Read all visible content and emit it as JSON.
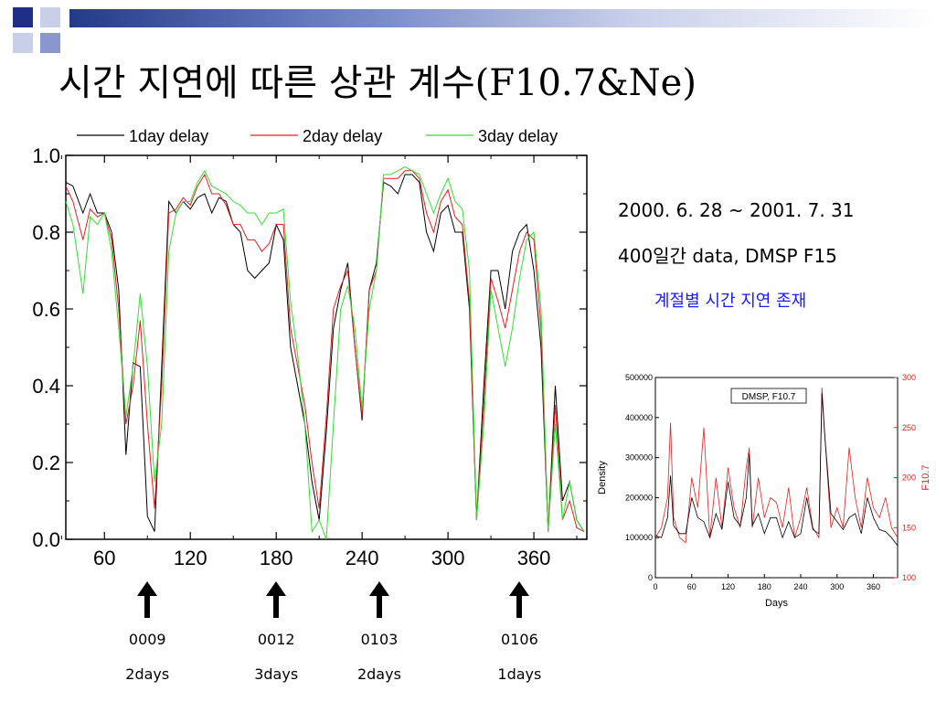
{
  "slide": {
    "title": "시간 지연에 따른 상관 계수(F10.7&Ne)"
  },
  "info": {
    "period": "2000. 6. 28 ~ 2001. 7. 31",
    "dataset": "400일간 data, DMSP F15",
    "note": "계절별 시간 지연 존재"
  },
  "colors": {
    "series1": "#000000",
    "series2": "#e02020",
    "series3": "#33dd33",
    "accent_blue": "#1a1aff",
    "deco_blue": "#223a8a"
  },
  "markers": [
    {
      "code": "0009",
      "delay": "2days",
      "x": 90
    },
    {
      "code": "0012",
      "delay": "3days",
      "x": 180
    },
    {
      "code": "0103",
      "delay": "2days",
      "x": 252
    },
    {
      "code": "0106",
      "delay": "1days",
      "x": 350
    }
  ],
  "chart_data": [
    {
      "type": "line",
      "title": "",
      "xlabel": "",
      "ylabel": "",
      "xlim": [
        33,
        397
      ],
      "ylim": [
        0.0,
        1.0
      ],
      "xticks": [
        "60",
        "120",
        "180",
        "240",
        "300",
        "360"
      ],
      "yticks": [
        "0.0",
        "0.2",
        "0.4",
        "0.6",
        "0.8",
        "1.0"
      ],
      "legend": "top, horizontal",
      "series": [
        {
          "name": "1day delay",
          "x": [
            33,
            38,
            45,
            50,
            55,
            60,
            65,
            70,
            75,
            80,
            85,
            90,
            95,
            100,
            105,
            110,
            115,
            120,
            125,
            130,
            135,
            140,
            145,
            150,
            155,
            160,
            165,
            170,
            175,
            180,
            185,
            190,
            195,
            200,
            205,
            210,
            215,
            220,
            225,
            230,
            235,
            240,
            245,
            250,
            255,
            260,
            265,
            270,
            275,
            280,
            285,
            290,
            295,
            300,
            305,
            310,
            315,
            320,
            325,
            330,
            335,
            340,
            345,
            350,
            355,
            360,
            365,
            370,
            375,
            380,
            385,
            390,
            395
          ],
          "y": [
            0.93,
            0.92,
            0.85,
            0.9,
            0.85,
            0.85,
            0.8,
            0.65,
            0.22,
            0.46,
            0.45,
            0.06,
            0.02,
            0.45,
            0.88,
            0.85,
            0.88,
            0.86,
            0.89,
            0.9,
            0.85,
            0.89,
            0.88,
            0.82,
            0.8,
            0.7,
            0.68,
            0.7,
            0.72,
            0.82,
            0.78,
            0.5,
            0.4,
            0.3,
            0.15,
            0.05,
            0.28,
            0.55,
            0.65,
            0.72,
            0.5,
            0.31,
            0.65,
            0.72,
            0.93,
            0.92,
            0.9,
            0.95,
            0.95,
            0.93,
            0.8,
            0.75,
            0.85,
            0.87,
            0.8,
            0.8,
            0.6,
            0.05,
            0.4,
            0.7,
            0.7,
            0.6,
            0.75,
            0.8,
            0.82,
            0.7,
            0.5,
            0.02,
            0.4,
            0.1,
            0.15,
            0.05,
            0.02
          ]
        },
        {
          "name": "2day delay",
          "x": [
            33,
            38,
            45,
            50,
            55,
            60,
            65,
            70,
            75,
            80,
            85,
            90,
            95,
            100,
            105,
            110,
            115,
            120,
            125,
            130,
            135,
            140,
            145,
            150,
            155,
            160,
            165,
            170,
            175,
            180,
            185,
            190,
            195,
            200,
            205,
            210,
            215,
            220,
            225,
            230,
            235,
            240,
            245,
            250,
            255,
            260,
            265,
            270,
            275,
            280,
            285,
            290,
            295,
            300,
            305,
            310,
            315,
            320,
            325,
            330,
            335,
            340,
            345,
            350,
            355,
            360,
            365,
            370,
            375,
            380,
            385,
            390,
            395
          ],
          "y": [
            0.92,
            0.88,
            0.78,
            0.86,
            0.84,
            0.85,
            0.78,
            0.6,
            0.3,
            0.4,
            0.57,
            0.3,
            0.08,
            0.4,
            0.85,
            0.86,
            0.89,
            0.87,
            0.92,
            0.95,
            0.9,
            0.9,
            0.87,
            0.82,
            0.82,
            0.78,
            0.78,
            0.75,
            0.77,
            0.82,
            0.82,
            0.55,
            0.45,
            0.35,
            0.2,
            0.08,
            0.32,
            0.6,
            0.66,
            0.7,
            0.5,
            0.32,
            0.65,
            0.7,
            0.94,
            0.94,
            0.94,
            0.96,
            0.96,
            0.94,
            0.85,
            0.8,
            0.88,
            0.91,
            0.84,
            0.82,
            0.62,
            0.05,
            0.35,
            0.68,
            0.62,
            0.55,
            0.65,
            0.75,
            0.8,
            0.78,
            0.55,
            0.02,
            0.35,
            0.05,
            0.1,
            0.03,
            0.02
          ]
        },
        {
          "name": "3day delay",
          "x": [
            33,
            38,
            45,
            50,
            55,
            60,
            65,
            70,
            75,
            80,
            85,
            90,
            95,
            100,
            105,
            110,
            115,
            120,
            125,
            130,
            135,
            140,
            145,
            150,
            155,
            160,
            165,
            170,
            175,
            180,
            185,
            190,
            195,
            200,
            205,
            210,
            215,
            220,
            225,
            230,
            235,
            240,
            245,
            250,
            255,
            260,
            265,
            270,
            275,
            280,
            285,
            290,
            295,
            300,
            305,
            310,
            315,
            320,
            325,
            330,
            335,
            340,
            345,
            350,
            355,
            360,
            365,
            370,
            375,
            380,
            385,
            390,
            395
          ],
          "y": [
            0.88,
            0.82,
            0.64,
            0.84,
            0.82,
            0.85,
            0.75,
            0.55,
            0.32,
            0.45,
            0.64,
            0.45,
            0.15,
            0.3,
            0.75,
            0.85,
            0.88,
            0.88,
            0.93,
            0.96,
            0.92,
            0.91,
            0.9,
            0.88,
            0.87,
            0.85,
            0.85,
            0.82,
            0.85,
            0.85,
            0.86,
            0.62,
            0.48,
            0.3,
            0.02,
            0.05,
            0.0,
            0.3,
            0.6,
            0.66,
            0.55,
            0.34,
            0.6,
            0.7,
            0.95,
            0.95,
            0.96,
            0.97,
            0.96,
            0.95,
            0.9,
            0.85,
            0.9,
            0.94,
            0.88,
            0.86,
            0.7,
            0.05,
            0.3,
            0.65,
            0.55,
            0.45,
            0.55,
            0.68,
            0.78,
            0.8,
            0.6,
            0.02,
            0.3,
            0.05,
            0.15,
            0.05,
            0.02
          ]
        }
      ]
    },
    {
      "type": "line",
      "title": "DMSP, F10.7",
      "xlabel": "Days",
      "ylabel": "Density",
      "y2label": "F10.7",
      "xlim": [
        0,
        400
      ],
      "ylim": [
        0,
        500000
      ],
      "y2lim": [
        100,
        300
      ],
      "xticks": [
        "0",
        "60",
        "120",
        "180",
        "240",
        "300",
        "360"
      ],
      "yticks": [
        "0",
        "100000",
        "200000",
        "300000",
        "400000",
        "500000"
      ],
      "y2ticks": [
        "100",
        "150",
        "200",
        "250",
        "300"
      ],
      "series": [
        {
          "name": "Density",
          "axis": "left",
          "x": [
            0,
            10,
            20,
            25,
            30,
            40,
            50,
            60,
            70,
            80,
            90,
            100,
            110,
            120,
            130,
            140,
            150,
            155,
            160,
            170,
            180,
            190,
            200,
            210,
            220,
            230,
            240,
            250,
            260,
            270,
            275,
            280,
            290,
            300,
            310,
            320,
            330,
            340,
            350,
            360,
            370,
            380,
            390,
            400
          ],
          "y": [
            105000,
            100000,
            150000,
            255000,
            130000,
            110000,
            110000,
            200000,
            150000,
            140000,
            100000,
            160000,
            120000,
            240000,
            150000,
            130000,
            200000,
            310000,
            130000,
            160000,
            110000,
            150000,
            150000,
            100000,
            140000,
            100000,
            110000,
            200000,
            120000,
            110000,
            460000,
            350000,
            160000,
            140000,
            120000,
            150000,
            160000,
            110000,
            200000,
            150000,
            120000,
            115000,
            100000,
            80000
          ]
        },
        {
          "name": "F10.7",
          "axis": "right",
          "x": [
            0,
            10,
            20,
            25,
            30,
            40,
            50,
            60,
            70,
            80,
            90,
            100,
            110,
            120,
            130,
            140,
            150,
            155,
            160,
            170,
            180,
            190,
            200,
            210,
            220,
            230,
            240,
            250,
            260,
            270,
            275,
            280,
            290,
            300,
            310,
            320,
            330,
            340,
            350,
            360,
            370,
            380,
            390,
            400
          ],
          "y": [
            140,
            150,
            180,
            255,
            160,
            140,
            135,
            200,
            170,
            250,
            140,
            200,
            150,
            210,
            170,
            150,
            210,
            230,
            150,
            200,
            160,
            180,
            175,
            150,
            190,
            140,
            160,
            190,
            150,
            140,
            290,
            240,
            150,
            170,
            150,
            230,
            180,
            150,
            200,
            170,
            160,
            180,
            150,
            140
          ]
        }
      ]
    }
  ]
}
